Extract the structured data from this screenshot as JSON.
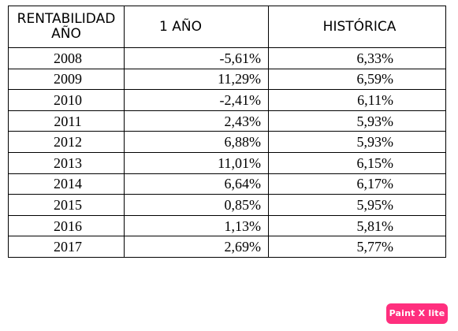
{
  "table": {
    "headers": {
      "col1_line1": "RENTABILIDAD",
      "col1_line2": "AÑO",
      "col2": "1 AÑO",
      "col3": "HISTÓRICA"
    },
    "rows": [
      {
        "year": "2008",
        "one_year": "-5,61%",
        "historic": "6,33%"
      },
      {
        "year": "2009",
        "one_year": "11,29%",
        "historic": "6,59%"
      },
      {
        "year": "2010",
        "one_year": "-2,41%",
        "historic": "6,11%"
      },
      {
        "year": "2011",
        "one_year": "2,43%",
        "historic": "5,93%"
      },
      {
        "year": "2012",
        "one_year": "6,88%",
        "historic": "5,93%"
      },
      {
        "year": "2013",
        "one_year": "11,01%",
        "historic": "6,15%"
      },
      {
        "year": "2014",
        "one_year": "6,64%",
        "historic": "6,17%"
      },
      {
        "year": "2015",
        "one_year": "0,85%",
        "historic": "5,95%"
      },
      {
        "year": "2016",
        "one_year": "1,13%",
        "historic": "5,81%"
      },
      {
        "year": "2017",
        "one_year": "2,69%",
        "historic": "5,77%"
      }
    ]
  },
  "watermark": {
    "text": "Paint X lite",
    "color": "#ff2f7e"
  }
}
